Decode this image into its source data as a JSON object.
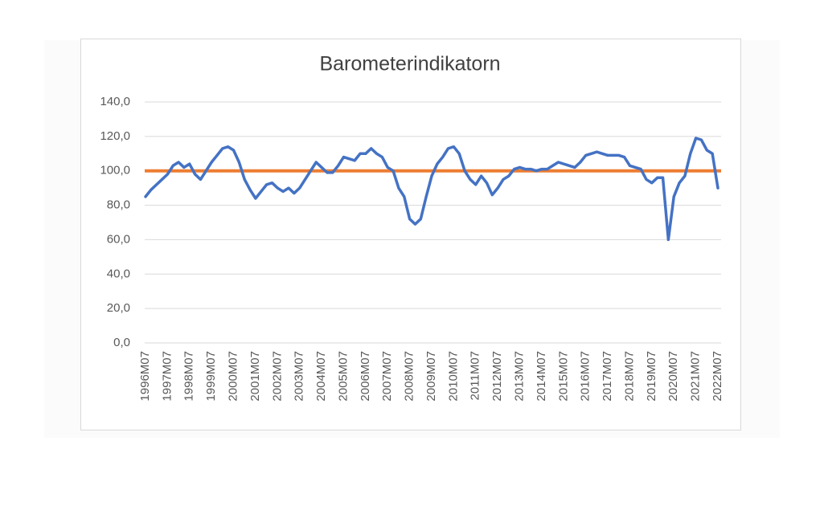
{
  "chart_data": {
    "type": "line",
    "title": "Barometerindikatorn",
    "categories": [
      "1996M07",
      null,
      null,
      null,
      "1997M07",
      null,
      null,
      null,
      "1998M07",
      null,
      null,
      null,
      "1999M07",
      null,
      null,
      null,
      "2000M07",
      null,
      null,
      null,
      "2001M07",
      null,
      null,
      null,
      "2002M07",
      null,
      null,
      null,
      "2003M07",
      null,
      null,
      null,
      "2004M07",
      null,
      null,
      null,
      "2005M07",
      null,
      null,
      null,
      "2006M07",
      null,
      null,
      null,
      "2007M07",
      null,
      null,
      null,
      "2008M07",
      null,
      null,
      null,
      "2009M07",
      null,
      null,
      null,
      "2010M07",
      null,
      null,
      null,
      "2011M07",
      null,
      null,
      null,
      "2012M07",
      null,
      null,
      null,
      "2013M07",
      null,
      null,
      null,
      "2014M07",
      null,
      null,
      null,
      "2015M07",
      null,
      null,
      null,
      "2016M07",
      null,
      null,
      null,
      "2017M07",
      null,
      null,
      null,
      "2018M07",
      null,
      null,
      null,
      "2019M07",
      null,
      null,
      null,
      "2020M07",
      null,
      null,
      null,
      "2021M07",
      null,
      null,
      null,
      "2022M07"
    ],
    "series": [
      {
        "color": "#4472c4",
        "values": [
          85,
          89,
          92,
          95,
          98,
          103,
          105,
          102,
          104,
          98,
          95,
          100,
          105,
          109,
          113,
          114,
          112,
          105,
          95,
          89,
          84,
          88,
          92,
          93,
          90,
          88,
          90,
          87,
          90,
          95,
          100,
          105,
          102,
          99,
          99,
          103,
          108,
          107,
          106,
          110,
          110,
          113,
          110,
          108,
          102,
          100,
          90,
          85,
          72,
          69,
          72,
          85,
          97,
          104,
          108,
          113,
          114,
          110,
          100,
          95,
          92,
          97,
          93,
          86,
          90,
          95,
          97,
          101,
          102,
          101,
          101,
          100,
          101,
          101,
          103,
          105,
          104,
          103,
          102,
          105,
          109,
          110,
          111,
          110,
          109,
          109,
          109,
          108,
          103,
          102,
          101,
          95,
          93,
          96,
          96,
          60,
          85,
          93,
          97,
          110,
          119,
          118,
          112,
          110,
          90
        ]
      }
    ],
    "reference_line": {
      "value": 100,
      "color": "#ed7d31"
    },
    "ylim": [
      0,
      140
    ],
    "yticks": [
      {
        "value": 0,
        "label": "0,0"
      },
      {
        "value": 20,
        "label": "20,0"
      },
      {
        "value": 40,
        "label": "40,0"
      },
      {
        "value": 60,
        "label": "60,0"
      },
      {
        "value": 80,
        "label": "80,0"
      },
      {
        "value": 100,
        "label": "100,0"
      },
      {
        "value": 120,
        "label": "120,0"
      },
      {
        "value": 140,
        "label": "140,0"
      }
    ],
    "grid": true
  }
}
